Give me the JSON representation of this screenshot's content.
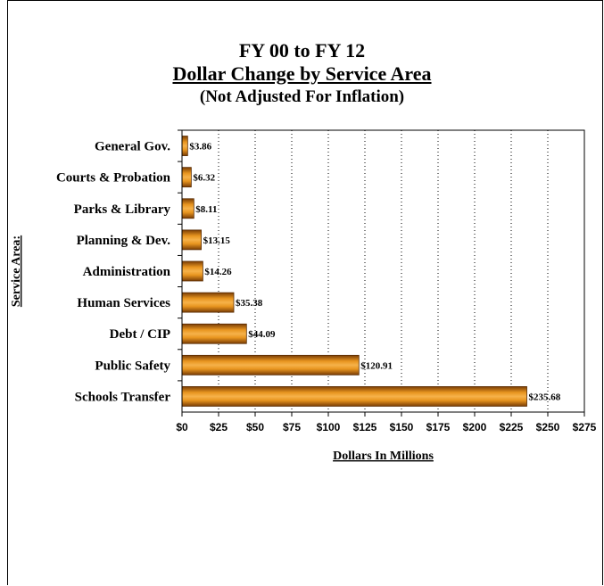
{
  "chart_data": {
    "type": "bar",
    "orientation": "horizontal",
    "title_lines": [
      "FY 00 to FY 12",
      "Dollar Change by Service Area",
      "(Not Adjusted For Inflation)"
    ],
    "xlabel": "Dollars In Millions",
    "ylabel": "Service Area:",
    "categories": [
      "General Gov.",
      "Courts & Probation",
      "Parks & Library",
      "Planning & Dev.",
      "Administration",
      "Human Services",
      "Debt / CIP",
      "Public Safety",
      "Schools Transfer"
    ],
    "values": [
      3.86,
      6.32,
      8.11,
      13.15,
      14.26,
      35.38,
      44.09,
      120.91,
      235.68
    ],
    "data_labels": [
      "$3.86",
      "$6.32",
      "$8.11",
      "$13.15",
      "$14.26",
      "$35.38",
      "$44.09",
      "$120.91",
      "$235.68"
    ],
    "xlim": [
      0,
      275
    ],
    "x_ticks": [
      0,
      25,
      50,
      75,
      100,
      125,
      150,
      175,
      200,
      225,
      250,
      275
    ],
    "x_tick_labels": [
      "$0",
      "$25",
      "$50",
      "$75",
      "$100",
      "$125",
      "$150",
      "$175",
      "$200",
      "$225",
      "$250",
      "$275"
    ],
    "grid": "vertical-dotted",
    "bar_color": "#e08a1e",
    "legend": "none"
  }
}
